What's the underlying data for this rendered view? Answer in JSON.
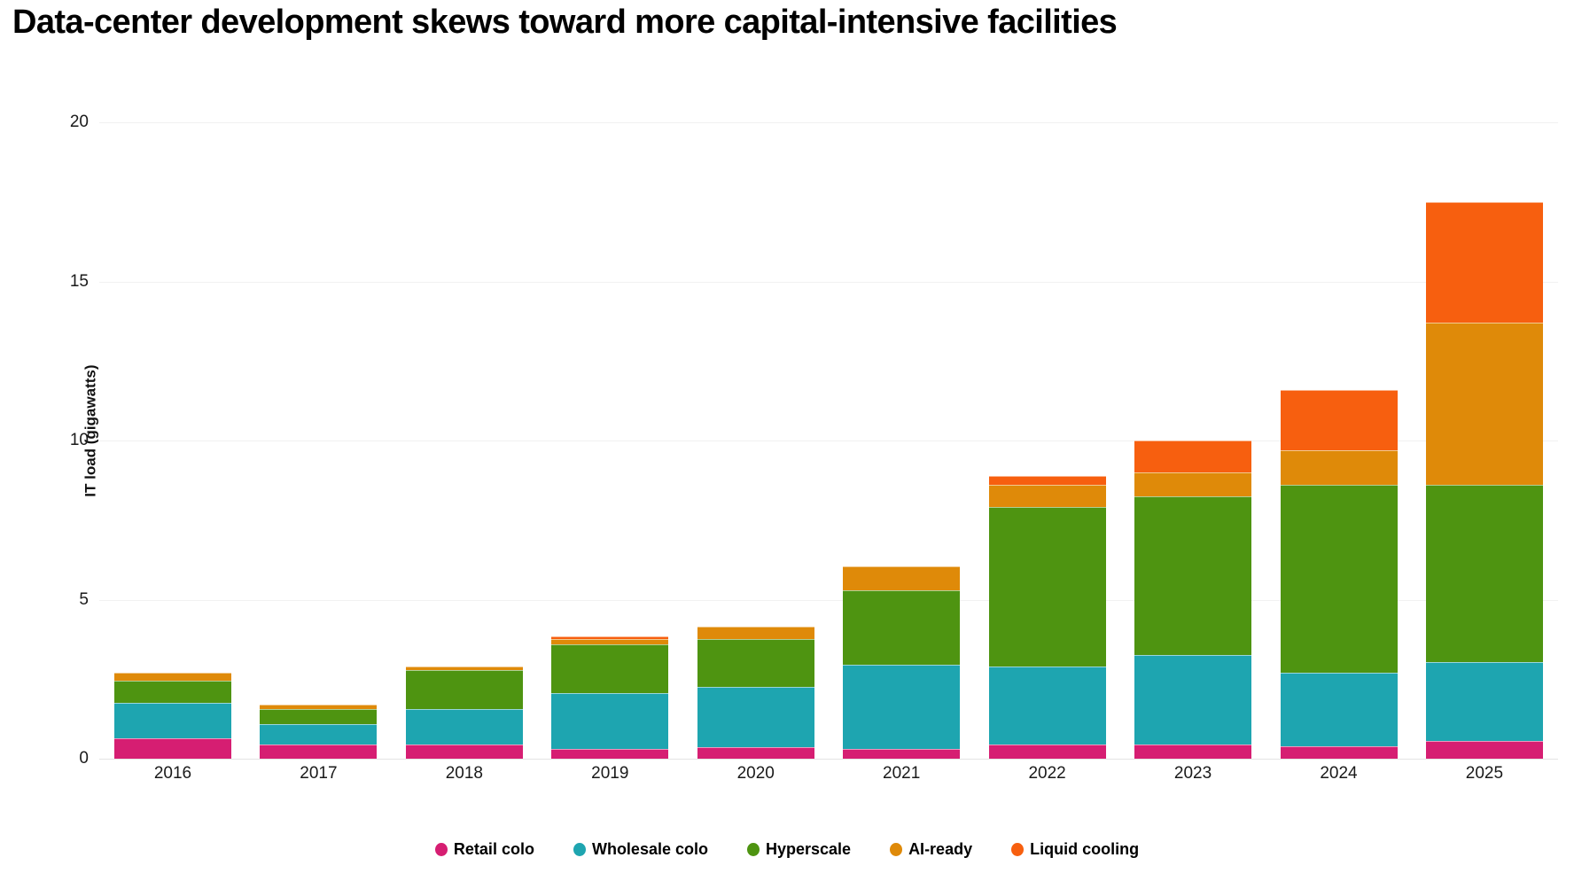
{
  "title": "Data-center development skews toward more capital-intensive facilities",
  "chart_data": {
    "type": "bar",
    "stacked": true,
    "title": "Data-center development skews toward more capital-intensive facilities",
    "ylabel": "IT load (gigawatts)",
    "xlabel": "",
    "ylim": [
      0,
      20
    ],
    "yticks": [
      0,
      5,
      10,
      15,
      20
    ],
    "grid": true,
    "legend_position": "bottom",
    "categories": [
      "2016",
      "2017",
      "2018",
      "2019",
      "2020",
      "2021",
      "2022",
      "2023",
      "2024",
      "2025"
    ],
    "series": [
      {
        "name": "Retail colo",
        "color": "#d61e72",
        "values": [
          0.65,
          0.45,
          0.45,
          0.3,
          0.35,
          0.3,
          0.45,
          0.45,
          0.4,
          0.55
        ]
      },
      {
        "name": "Wholesale colo",
        "color": "#1ea5b0",
        "values": [
          1.1,
          0.65,
          1.1,
          1.75,
          1.9,
          2.65,
          2.45,
          2.8,
          2.3,
          2.5
        ]
      },
      {
        "name": "Hyperscale",
        "color": "#4e9411",
        "values": [
          0.7,
          0.45,
          1.25,
          1.55,
          1.5,
          2.35,
          5.0,
          5.0,
          5.9,
          5.55
        ]
      },
      {
        "name": "AI-ready",
        "color": "#df8a09",
        "values": [
          0.25,
          0.15,
          0.1,
          0.15,
          0.4,
          0.75,
          0.7,
          0.75,
          1.1,
          5.1
        ]
      },
      {
        "name": "Liquid cooling",
        "color": "#f75f0f",
        "values": [
          0.0,
          0.0,
          0.0,
          0.1,
          0.0,
          0.0,
          0.3,
          1.0,
          1.9,
          3.8
        ]
      }
    ],
    "totals": [
      2.7,
      1.7,
      2.9,
      3.85,
      4.15,
      6.05,
      8.9,
      10.0,
      11.6,
      17.5
    ]
  }
}
